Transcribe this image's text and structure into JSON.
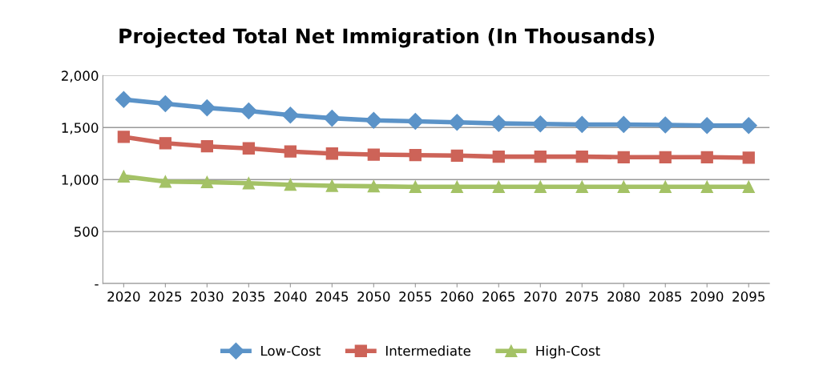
{
  "chart_data": {
    "type": "line",
    "title": "Projected Total Net Immigration (In Thousands)",
    "categories": [
      "2020",
      "2025",
      "2030",
      "2035",
      "2040",
      "2045",
      "2050",
      "2055",
      "2060",
      "2065",
      "2070",
      "2075",
      "2080",
      "2085",
      "2090",
      "2095"
    ],
    "series": [
      {
        "name": "Low-Cost",
        "color": "#5b93c8",
        "marker": "diamond",
        "values": [
          1770,
          1730,
          1690,
          1660,
          1620,
          1590,
          1570,
          1560,
          1550,
          1540,
          1535,
          1530,
          1530,
          1525,
          1520,
          1520
        ]
      },
      {
        "name": "Intermediate",
        "color": "#cd6358",
        "marker": "square",
        "values": [
          1410,
          1350,
          1320,
          1300,
          1270,
          1250,
          1240,
          1235,
          1230,
          1220,
          1220,
          1220,
          1215,
          1215,
          1215,
          1210
        ]
      },
      {
        "name": "High-Cost",
        "color": "#a4c266",
        "marker": "triangle",
        "values": [
          1030,
          980,
          975,
          965,
          950,
          940,
          935,
          930,
          930,
          930,
          930,
          930,
          930,
          930,
          930,
          930
        ]
      }
    ],
    "ylim": [
      0,
      2000
    ],
    "yticks": [
      {
        "value": 0,
        "label": "-"
      },
      {
        "value": 500,
        "label": "500"
      },
      {
        "value": 1000,
        "label": "1,000"
      },
      {
        "value": 1500,
        "label": "1,500"
      },
      {
        "value": 2000,
        "label": "2,000"
      }
    ],
    "grid": "y",
    "legend": "bottom"
  }
}
